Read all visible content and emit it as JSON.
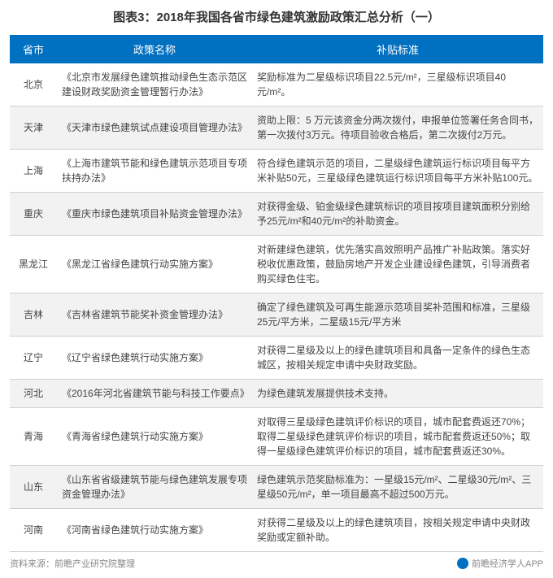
{
  "title": "图表3：2018年我国各省市绿色建筑激励政策汇总分析（一）",
  "columns": {
    "province": "省市",
    "policy": "政策名称",
    "standard": "补贴标准"
  },
  "rows": [
    {
      "province": "北京",
      "policy": "《北京市发展绿色建筑推动绿色生态示范区建设财政奖励资金管理暂行办法》",
      "standard": "奖励标准为二星级标识项目22.5元/m²，三星级标识项目40元/m²。"
    },
    {
      "province": "天津",
      "policy": "《天津市绿色建筑试点建设项目管理办法》",
      "standard": "资助上限：5 万元该资金分两次拨付，申报单位签署任务合同书，第一次拨付3万元。待项目验收合格后，第二次拨付2万元。"
    },
    {
      "province": "上海",
      "policy": "《上海市建筑节能和绿色建筑示范项目专项扶持办法》",
      "standard": "符合绿色建筑示范的项目，二星级绿色建筑运行标识项目每平方米补贴50元，三星级绿色建筑运行标识项目每平方米补贴100元。"
    },
    {
      "province": "重庆",
      "policy": "《重庆市绿色建筑项目补贴资金管理办法》",
      "standard": "对获得金级、铂金级绿色建筑标识的项目按项目建筑面积分别给予25元/m²和40元/m²的补助资金。"
    },
    {
      "province": "黑龙江",
      "policy": "《黑龙江省绿色建筑行动实施方案》",
      "standard": "对新建绿色建筑，优先落实高效照明产品推广补贴政策。落实好税收优惠政策，鼓励房地产开发企业建设绿色建筑，引导消费者购买绿色住宅。"
    },
    {
      "province": "吉林",
      "policy": "《吉林省建筑节能奖补资金管理办法》",
      "standard": "确定了绿色建筑及可再生能源示范项目奖补范围和标准，三星级25元/平方米，二星级15元/平方米"
    },
    {
      "province": "辽宁",
      "policy": "《辽宁省绿色建筑行动实施方案》",
      "standard": "对获得二星级及以上的绿色建筑项目和具备一定条件的绿色生态城区，按相关规定申请中央财政奖励。"
    },
    {
      "province": "河北",
      "policy": "《2016年河北省建筑节能与科技工作要点》",
      "standard": "为绿色建筑发展提供技术支持。"
    },
    {
      "province": "青海",
      "policy": "《青海省绿色建筑行动实施方案》",
      "standard": "对取得三星级绿色建筑评价标识的项目，城市配套费返还70%；取得二星级绿色建筑评价标识的项目，城市配套费返还50%；取得一星级绿色建筑评价标识的项目，城市配套费返还30%。"
    },
    {
      "province": "山东",
      "policy": "《山东省省级建筑节能与绿色建筑发展专项资金管理办法》",
      "standard": "绿色建筑示范奖励标准为：一星级15元/m²、二星级30元/m²、三星级50元/m²，单一项目最高不超过500万元。"
    },
    {
      "province": "河南",
      "policy": "《河南省绿色建筑行动实施方案》",
      "standard": "对获得二星级及以上的绿色建筑项目，按相关规定申请中央财政奖励或定额补助。"
    }
  ],
  "footer": {
    "source": "资料来源：前瞻产业研究院整理",
    "brand": "前瞻经济学人APP"
  },
  "colors": {
    "header_bg": "#0070c0",
    "header_text": "#ffffff",
    "row_even_bg": "#f2f2f2",
    "row_odd_bg": "#ffffff",
    "border": "#d0d0d0",
    "text": "#444444",
    "footer_text": "#888888"
  }
}
